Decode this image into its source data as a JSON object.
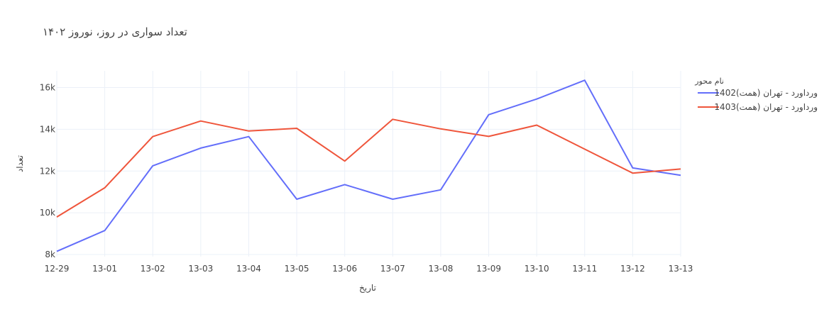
{
  "chart_data": {
    "type": "line",
    "title": "تعداد سواری در روز، نوروز ۱۴۰۲",
    "xlabel": "تاریخ",
    "ylabel": "تعداد",
    "categories": [
      "12-29",
      "13-01",
      "13-02",
      "13-03",
      "13-04",
      "13-05",
      "13-06",
      "13-07",
      "13-08",
      "13-09",
      "13-10",
      "13-11",
      "13-12",
      "13-13"
    ],
    "ylim": [
      7900,
      16800
    ],
    "yticks": [
      8000,
      10000,
      12000,
      14000,
      16000
    ],
    "ytick_labels": [
      "8k",
      "10k",
      "12k",
      "14k",
      "16k"
    ],
    "grid": true,
    "legend": {
      "title": "نام محور",
      "placement": "top-right"
    },
    "series": [
      {
        "name": "ورداورد - تهران (همت)1402",
        "color": "#636efa",
        "values": [
          8150,
          9150,
          12250,
          13100,
          13650,
          10650,
          11350,
          10650,
          11100,
          14700,
          15450,
          16350,
          12150,
          11800
        ]
      },
      {
        "name": "ورداورد - تهران (همت)1403",
        "color": "#ef553b",
        "values": [
          9800,
          11200,
          13650,
          14400,
          13920,
          14050,
          12480,
          14480,
          14020,
          13660,
          14200,
          13050,
          11900,
          12100
        ]
      }
    ]
  }
}
